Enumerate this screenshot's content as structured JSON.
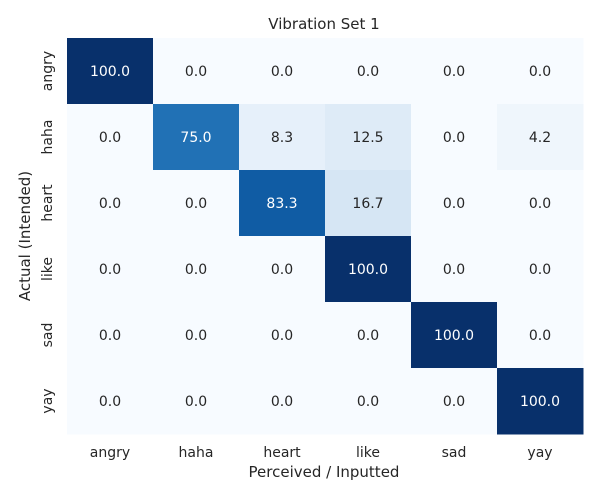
{
  "chart_data": {
    "type": "heatmap",
    "title": "Vibration Set 1",
    "xlabel": "Perceived / Inputted",
    "ylabel": "Actual (Intended)",
    "x_categories": [
      "angry",
      "haha",
      "heart",
      "like",
      "sad",
      "yay"
    ],
    "y_categories": [
      "angry",
      "haha",
      "heart",
      "like",
      "sad",
      "yay"
    ],
    "values": [
      [
        100.0,
        0.0,
        0.0,
        0.0,
        0.0,
        0.0
      ],
      [
        0.0,
        75.0,
        8.3,
        12.5,
        0.0,
        4.2
      ],
      [
        0.0,
        0.0,
        83.3,
        16.7,
        0.0,
        0.0
      ],
      [
        0.0,
        0.0,
        0.0,
        100.0,
        0.0,
        0.0
      ],
      [
        0.0,
        0.0,
        0.0,
        0.0,
        100.0,
        0.0
      ],
      [
        0.0,
        0.0,
        0.0,
        0.0,
        0.0,
        100.0
      ]
    ],
    "value_format": "0.0",
    "vmin": 0,
    "vmax": 100,
    "colormap": "Blues",
    "colorbar": false,
    "grid": false
  }
}
